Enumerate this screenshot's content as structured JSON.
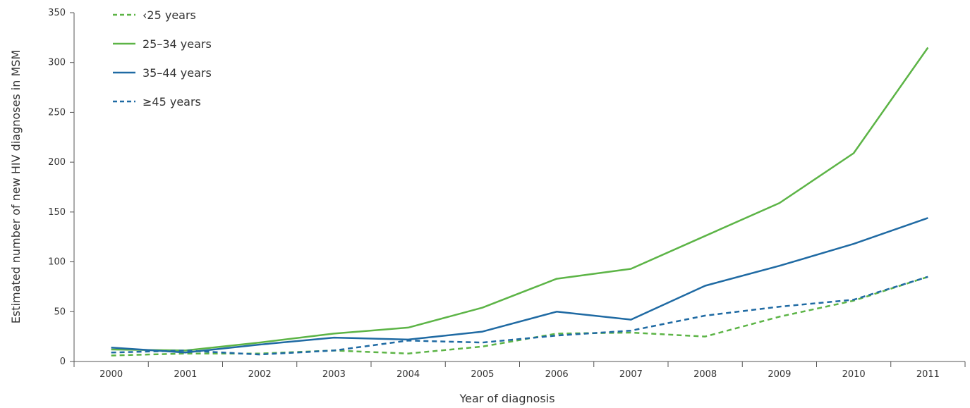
{
  "chart_data": {
    "type": "line",
    "title": "",
    "xlabel": "Year of diagnosis",
    "ylabel": "Estimated number of new HIV diagnoses in MSM",
    "ylim": [
      0,
      350
    ],
    "yticks": [
      0,
      50,
      100,
      150,
      200,
      250,
      300,
      350
    ],
    "grid": false,
    "legend": "top-left",
    "categories": [
      "2000",
      "2001",
      "2002",
      "2003",
      "2004",
      "2005",
      "2006",
      "2007",
      "2008",
      "2009",
      "2010",
      "2011"
    ],
    "series": [
      {
        "name": "‹25 years",
        "color": "#5cb446",
        "dash": "dashed",
        "values": [
          6,
          8,
          8,
          11,
          8,
          15,
          28,
          29,
          25,
          45,
          61,
          85
        ]
      },
      {
        "name": "25–34 years",
        "color": "#5cb446",
        "dash": "solid",
        "values": [
          12,
          11,
          19,
          28,
          34,
          54,
          83,
          93,
          126,
          159,
          209,
          315
        ]
      },
      {
        "name": "35–44 years",
        "color": "#1f6aa3",
        "dash": "solid",
        "values": [
          14,
          9,
          17,
          24,
          22,
          30,
          50,
          42,
          76,
          96,
          118,
          144
        ]
      },
      {
        "name": "≥45 years",
        "color": "#1f6aa3",
        "dash": "dashed",
        "values": [
          9,
          11,
          7,
          11,
          21,
          19,
          26,
          31,
          46,
          55,
          62,
          85
        ]
      }
    ]
  }
}
